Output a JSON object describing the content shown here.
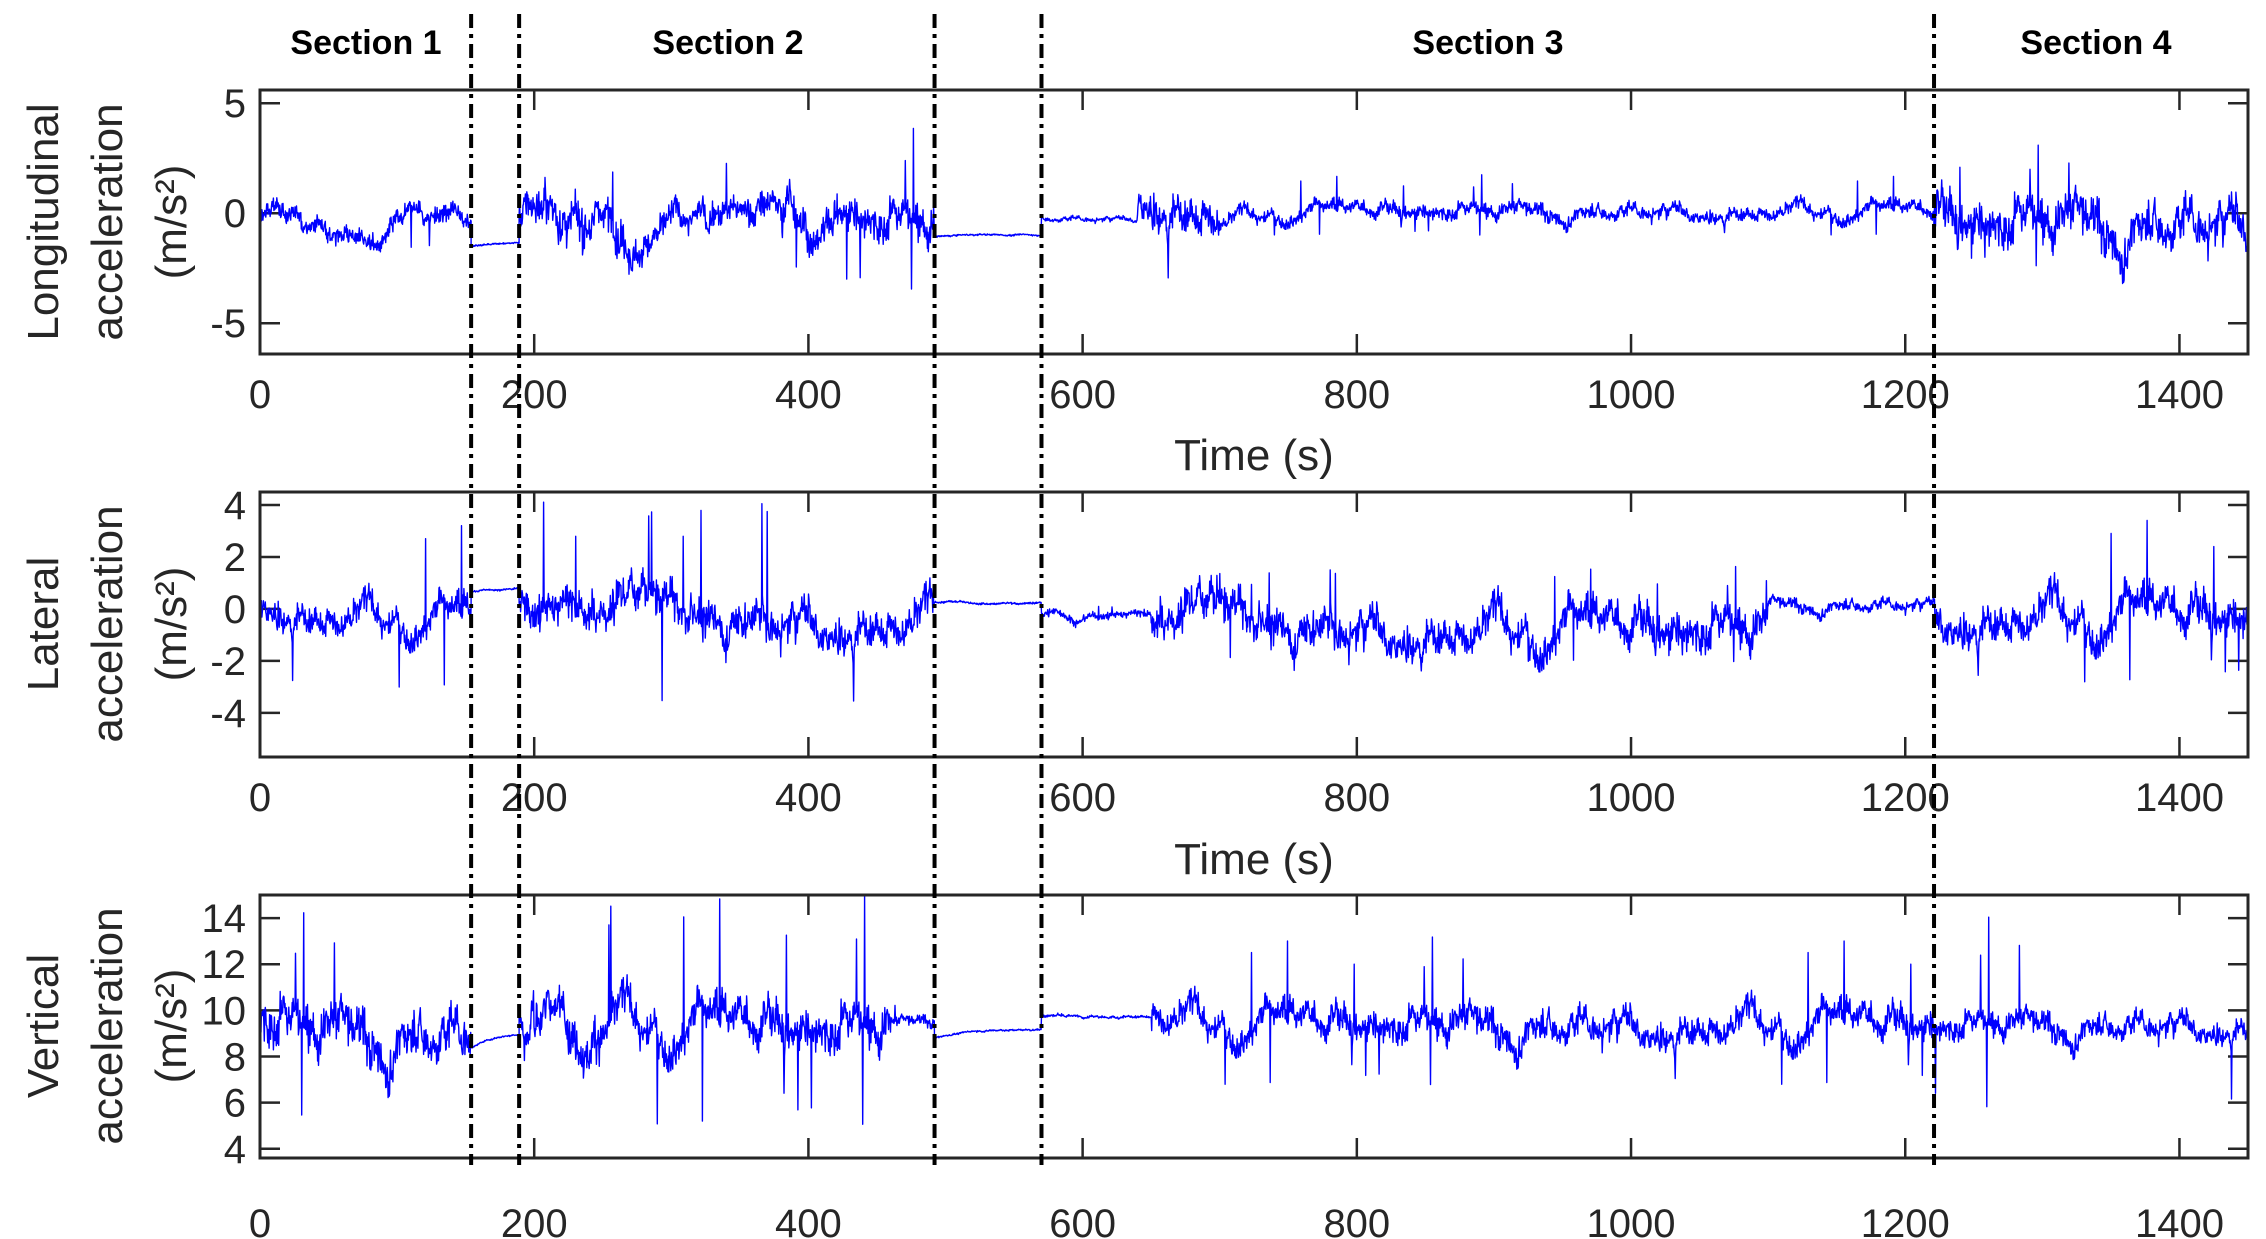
{
  "figure": {
    "section_labels": [
      {
        "label": "Section 1",
        "x_center": 77
      },
      {
        "label": "Section 2",
        "x_center": 335
      },
      {
        "label": "Section 3",
        "x_center": 893
      },
      {
        "label": "Section 4",
        "x_center": 1334
      }
    ],
    "section_dividers_s": [
      154,
      189,
      492,
      570,
      1221
    ],
    "line_color": "#0000ff",
    "axis_color": "#262626"
  },
  "chart_data": [
    {
      "type": "line",
      "title": "",
      "xlabel": "Time (s)",
      "ylabel_lines": [
        "Longitudinal",
        "acceleration",
        "(m/s²)"
      ],
      "xlim": [
        0,
        1450
      ],
      "ylim": [
        -6.4,
        5.6
      ],
      "xticks": [
        0,
        200,
        400,
        600,
        800,
        1000,
        1200,
        1400
      ],
      "yticks": [
        -5,
        0,
        5
      ],
      "series_name": "Longitudinal acceleration",
      "segments": [
        {
          "t0": 0,
          "t1": 154,
          "mean": -0.3,
          "noise": 0.6,
          "spike": 2.0
        },
        {
          "t0": 154,
          "t1": 189,
          "mean": -1.3,
          "noise": 0.05,
          "spike": 0
        },
        {
          "t0": 189,
          "t1": 280,
          "mean": 0.3,
          "noise": 1.2,
          "spike": 2.8
        },
        {
          "t0": 280,
          "t1": 380,
          "mean": 0.9,
          "noise": 0.8,
          "spike": 1.5
        },
        {
          "t0": 380,
          "t1": 492,
          "mean": 0.0,
          "noise": 1.1,
          "spike": 4.0
        },
        {
          "t0": 492,
          "t1": 570,
          "mean": -1.0,
          "noise": 0.05,
          "spike": 0
        },
        {
          "t0": 570,
          "t1": 640,
          "mean": -0.2,
          "noise": 0.15,
          "spike": 0.3
        },
        {
          "t0": 640,
          "t1": 700,
          "mean": 0.6,
          "noise": 1.2,
          "spike": 4.5
        },
        {
          "t0": 700,
          "t1": 1221,
          "mean": 0.3,
          "noise": 0.45,
          "spike": 1.5
        },
        {
          "t0": 1221,
          "t1": 1450,
          "mean": 0.2,
          "noise": 1.3,
          "spike": 3.0
        }
      ]
    },
    {
      "type": "line",
      "title": "",
      "xlabel": "Time (s)",
      "ylabel_lines": [
        "Lateral",
        "acceleration",
        "(m/s²)"
      ],
      "xlim": [
        0,
        1450
      ],
      "ylim": [
        -5.7,
        4.5
      ],
      "xticks": [
        0,
        200,
        400,
        600,
        800,
        1000,
        1200,
        1400
      ],
      "yticks": [
        -4,
        -2,
        0,
        2,
        4
      ],
      "series_name": "Lateral acceleration",
      "segments": [
        {
          "t0": 0,
          "t1": 154,
          "mean": 0.0,
          "noise": 0.8,
          "spike": 3.5
        },
        {
          "t0": 154,
          "t1": 189,
          "mean": 0.8,
          "noise": 0.05,
          "spike": 0
        },
        {
          "t0": 189,
          "t1": 492,
          "mean": 0.0,
          "noise": 1.0,
          "spike": 4.5
        },
        {
          "t0": 492,
          "t1": 570,
          "mean": 0.25,
          "noise": 0.05,
          "spike": 0
        },
        {
          "t0": 570,
          "t1": 650,
          "mean": -0.2,
          "noise": 0.2,
          "spike": 0.3
        },
        {
          "t0": 650,
          "t1": 1100,
          "mean": -0.3,
          "noise": 1.0,
          "spike": 2.0
        },
        {
          "t0": 1100,
          "t1": 1221,
          "mean": 0.3,
          "noise": 0.3,
          "spike": 1.0
        },
        {
          "t0": 1221,
          "t1": 1450,
          "mean": 0.2,
          "noise": 1.0,
          "spike": 3.5
        }
      ]
    },
    {
      "type": "line",
      "title": "",
      "xlabel": "",
      "ylabel_lines": [
        "Vertical",
        "acceleration",
        "(m/s²)"
      ],
      "xlim": [
        0,
        1450
      ],
      "ylim": [
        3.6,
        15
      ],
      "xticks": [
        0,
        200,
        400,
        600,
        800,
        1000,
        1200,
        1400
      ],
      "yticks": [
        4,
        6,
        8,
        10,
        12,
        14
      ],
      "series_name": "Vertical acceleration",
      "segments": [
        {
          "t0": 0,
          "t1": 154,
          "mean": 9.6,
          "noise": 1.3,
          "spike": 4.8
        },
        {
          "t0": 154,
          "t1": 189,
          "mean": 9.2,
          "noise": 0.05,
          "spike": 0
        },
        {
          "t0": 189,
          "t1": 460,
          "mean": 9.8,
          "noise": 1.2,
          "spike": 5.5
        },
        {
          "t0": 460,
          "t1": 492,
          "mean": 9.8,
          "noise": 0.3,
          "spike": 0.6
        },
        {
          "t0": 492,
          "t1": 570,
          "mean": 9.2,
          "noise": 0.05,
          "spike": 0
        },
        {
          "t0": 570,
          "t1": 650,
          "mean": 9.8,
          "noise": 0.08,
          "spike": 0.5
        },
        {
          "t0": 650,
          "t1": 1221,
          "mean": 9.8,
          "noise": 0.9,
          "spike": 3.5
        },
        {
          "t0": 1221,
          "t1": 1450,
          "mean": 9.7,
          "noise": 0.7,
          "spike": 4.5
        }
      ]
    }
  ]
}
